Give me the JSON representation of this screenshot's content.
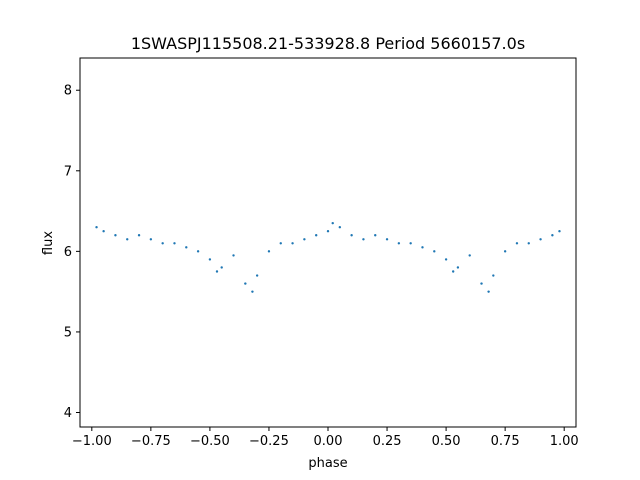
{
  "chart_data": {
    "type": "scatter",
    "title": "1SWASPJ115508.21-533928.8 Period 5660157.0s",
    "xlabel": "phase",
    "ylabel": "flux",
    "xlim": [
      -1.05,
      1.05
    ],
    "ylim": [
      3.82,
      8.4
    ],
    "xticks": [
      -1.0,
      -0.75,
      -0.5,
      -0.25,
      0.0,
      0.25,
      0.5,
      0.75,
      1.0
    ],
    "xtick_labels": [
      "−1.00",
      "−0.75",
      "−0.50",
      "−0.25",
      "0.00",
      "0.25",
      "0.50",
      "0.75",
      "1.00"
    ],
    "yticks": [
      4,
      5,
      6,
      7,
      8
    ],
    "ytick_labels": [
      "4",
      "5",
      "6",
      "7",
      "8"
    ],
    "grid": false,
    "point_color": "#1f77b4",
    "series": [
      {
        "x": [
          -0.98,
          -0.95,
          -0.9,
          -0.85,
          -0.8,
          -0.75,
          -0.7,
          -0.65,
          -0.6,
          -0.55,
          -0.5,
          -0.47,
          -0.45,
          -0.4,
          -0.35,
          -0.32,
          -0.3,
          -0.25,
          -0.2,
          -0.15,
          -0.1,
          -0.05,
          0.0,
          0.02,
          0.05,
          0.1,
          0.15,
          0.2,
          0.25,
          0.3,
          0.35,
          0.4,
          0.45,
          0.5,
          0.53,
          0.55,
          0.6,
          0.65,
          0.68,
          0.7,
          0.75,
          0.8,
          0.85,
          0.9,
          0.95,
          0.98
        ],
        "y": [
          6.3,
          6.25,
          6.2,
          6.15,
          6.2,
          6.15,
          6.1,
          6.1,
          6.05,
          6.0,
          5.9,
          5.75,
          5.8,
          5.95,
          5.6,
          5.5,
          5.7,
          6.0,
          6.1,
          6.1,
          6.15,
          6.2,
          6.25,
          6.35,
          6.3,
          6.2,
          6.15,
          6.2,
          6.15,
          6.1,
          6.1,
          6.05,
          6.0,
          5.9,
          5.75,
          5.8,
          5.95,
          5.6,
          5.5,
          5.7,
          6.0,
          6.1,
          6.1,
          6.15,
          6.2,
          6.25
        ]
      }
    ]
  }
}
